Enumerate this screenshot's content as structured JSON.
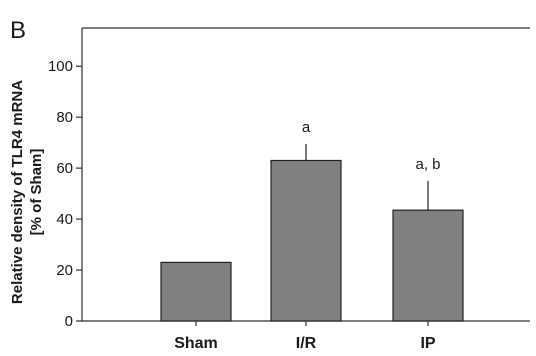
{
  "panel_label": "B",
  "chart_data": {
    "type": "bar",
    "categories": [
      "Sham",
      "I/R",
      "IP"
    ],
    "values": [
      23,
      63,
      43.5
    ],
    "error_upper": [
      0,
      69.5,
      55
    ],
    "annotations": [
      "",
      "a",
      "a, b"
    ],
    "ylabel_line1": "Relative density of TLR4 mRNA",
    "ylabel_line2": "[% of Sham]",
    "ylim": [
      0,
      115
    ],
    "yticks": [
      0,
      20,
      40,
      60,
      80,
      100
    ],
    "bar_color": "#808080",
    "grid": false,
    "legend": "none"
  }
}
